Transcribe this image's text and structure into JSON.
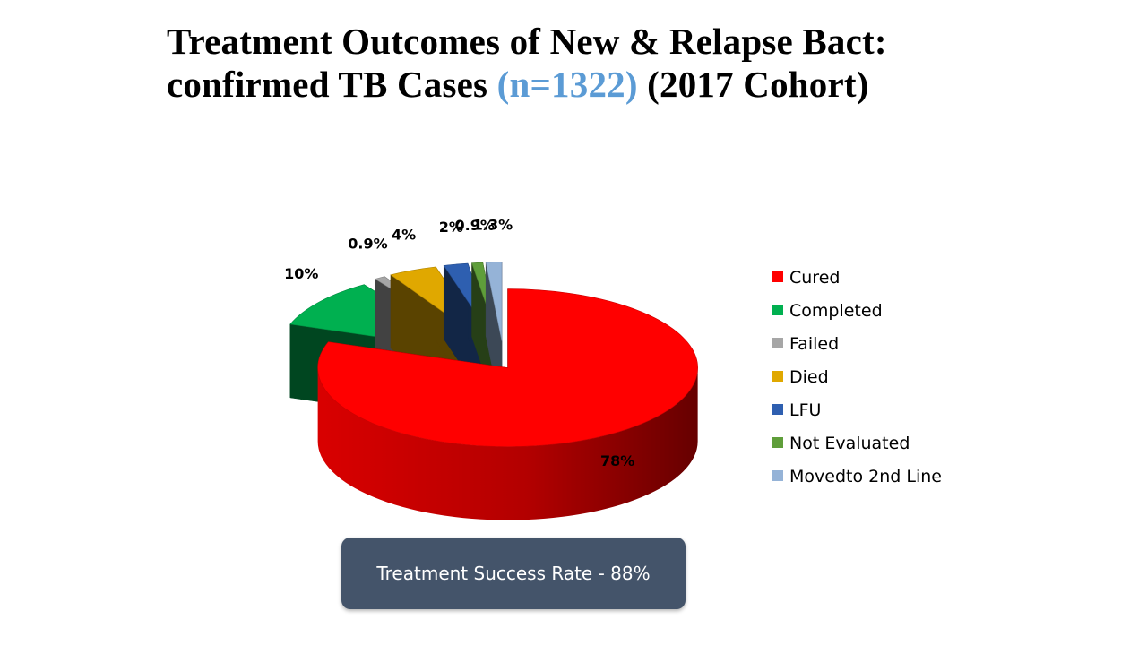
{
  "title": {
    "line1": "Treatment Outcomes of New & Relapse Bact:",
    "line2_prefix": "confirmed TB Cases ",
    "line2_count": "(n=1322)",
    "line2_suffix": " (2017 Cohort)"
  },
  "chart_data": {
    "type": "pie",
    "style": "3d-exploded",
    "legend_position": "right",
    "slices": [
      {
        "label": "Cured",
        "value": 78,
        "value_label": "78%",
        "color": "#ff0000"
      },
      {
        "label": "Completed",
        "value": 10,
        "value_label": "10%",
        "color": "#00b050"
      },
      {
        "label": "Failed",
        "value": 0.9,
        "value_label": "0.9%",
        "color": "#a6a6a6"
      },
      {
        "label": "Died",
        "value": 4,
        "value_label": "4%",
        "color": "#e0a800"
      },
      {
        "label": "LFU",
        "value": 2,
        "value_label": "2%",
        "color": "#2e5fb0"
      },
      {
        "label": "Not Evaluated",
        "value": 0.9,
        "value_label": "0.9%",
        "color": "#5f9e3a"
      },
      {
        "label": "Movedto 2nd Line",
        "value": 1.3,
        "value_label": "1.3%",
        "color": "#95b3d7"
      }
    ]
  },
  "callout": {
    "text": "Treatment Success Rate - 88%"
  }
}
